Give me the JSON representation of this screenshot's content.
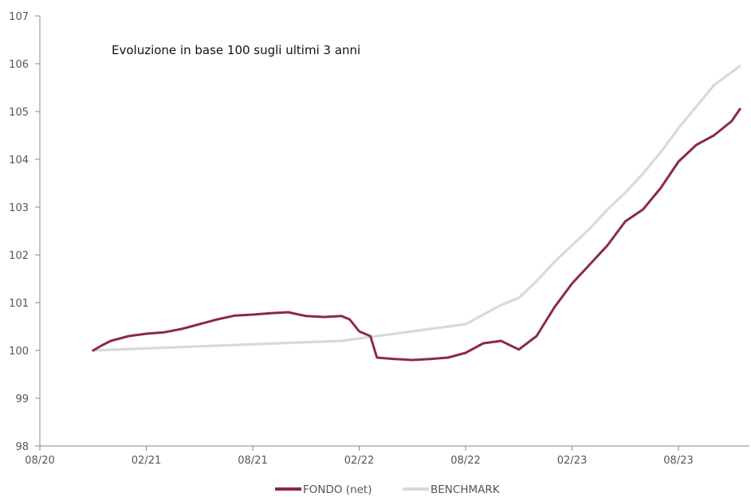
{
  "chart_data": {
    "type": "line",
    "title": "",
    "annotation": "Evoluzione in base 100 sugli ultimi 3 anni",
    "xlabel": "",
    "ylabel": "",
    "x_ticks": [
      "08/20",
      "02/21",
      "08/21",
      "02/22",
      "08/22",
      "02/23",
      "08/23"
    ],
    "y_ticks": [
      "98",
      "99",
      "100",
      "101",
      "102",
      "103",
      "104",
      "105",
      "106",
      "107"
    ],
    "ylim": [
      98,
      107
    ],
    "xlim": [
      "2020-08",
      "2023-12"
    ],
    "grid": false,
    "legend_position": "bottom-center",
    "series": [
      {
        "name": "FONDO (net)",
        "color": "#8b2a44",
        "points": [
          [
            "2020-11",
            100.0
          ],
          [
            "2020-11-15",
            100.1
          ],
          [
            "2020-12",
            100.2
          ],
          [
            "2021-01",
            100.3
          ],
          [
            "2021-02",
            100.35
          ],
          [
            "2021-03",
            100.38
          ],
          [
            "2021-04",
            100.45
          ],
          [
            "2021-05",
            100.55
          ],
          [
            "2021-06",
            100.65
          ],
          [
            "2021-07",
            100.73
          ],
          [
            "2021-08",
            100.75
          ],
          [
            "2021-09",
            100.78
          ],
          [
            "2021-10",
            100.8
          ],
          [
            "2021-11",
            100.72
          ],
          [
            "2021-12",
            100.7
          ],
          [
            "2022-01",
            100.72
          ],
          [
            "2022-01-15",
            100.65
          ],
          [
            "2022-02",
            100.4
          ],
          [
            "2022-02-20",
            100.3
          ],
          [
            "2022-03",
            99.85
          ],
          [
            "2022-04",
            99.82
          ],
          [
            "2022-05",
            99.8
          ],
          [
            "2022-06",
            99.82
          ],
          [
            "2022-07",
            99.85
          ],
          [
            "2022-08",
            99.95
          ],
          [
            "2022-09",
            100.15
          ],
          [
            "2022-10",
            100.2
          ],
          [
            "2022-11",
            100.02
          ],
          [
            "2022-12",
            100.3
          ],
          [
            "2023-01",
            100.9
          ],
          [
            "2023-02",
            101.4
          ],
          [
            "2023-03",
            101.8
          ],
          [
            "2023-04",
            102.2
          ],
          [
            "2023-05",
            102.7
          ],
          [
            "2023-06",
            102.95
          ],
          [
            "2023-07",
            103.4
          ],
          [
            "2023-08",
            103.95
          ],
          [
            "2023-09",
            104.3
          ],
          [
            "2023-10",
            104.5
          ],
          [
            "2023-11",
            104.8
          ],
          [
            "2023-11-15",
            105.05
          ]
        ]
      },
      {
        "name": "BENCHMARK",
        "color": "#d9d9d9",
        "points": [
          [
            "2020-11",
            100.0
          ],
          [
            "2021-06",
            100.1
          ],
          [
            "2022-01",
            100.2
          ],
          [
            "2022-03",
            100.3
          ],
          [
            "2022-06",
            100.45
          ],
          [
            "2022-08",
            100.55
          ],
          [
            "2022-09",
            100.75
          ],
          [
            "2022-10",
            100.95
          ],
          [
            "2022-11",
            101.1
          ],
          [
            "2022-12",
            101.45
          ],
          [
            "2023-01",
            101.85
          ],
          [
            "2023-02",
            102.2
          ],
          [
            "2023-03",
            102.55
          ],
          [
            "2023-04",
            102.95
          ],
          [
            "2023-05",
            103.3
          ],
          [
            "2023-06",
            103.7
          ],
          [
            "2023-07",
            104.15
          ],
          [
            "2023-08",
            104.65
          ],
          [
            "2023-09",
            105.1
          ],
          [
            "2023-10",
            105.55
          ],
          [
            "2023-11-15",
            105.95
          ]
        ]
      }
    ]
  }
}
